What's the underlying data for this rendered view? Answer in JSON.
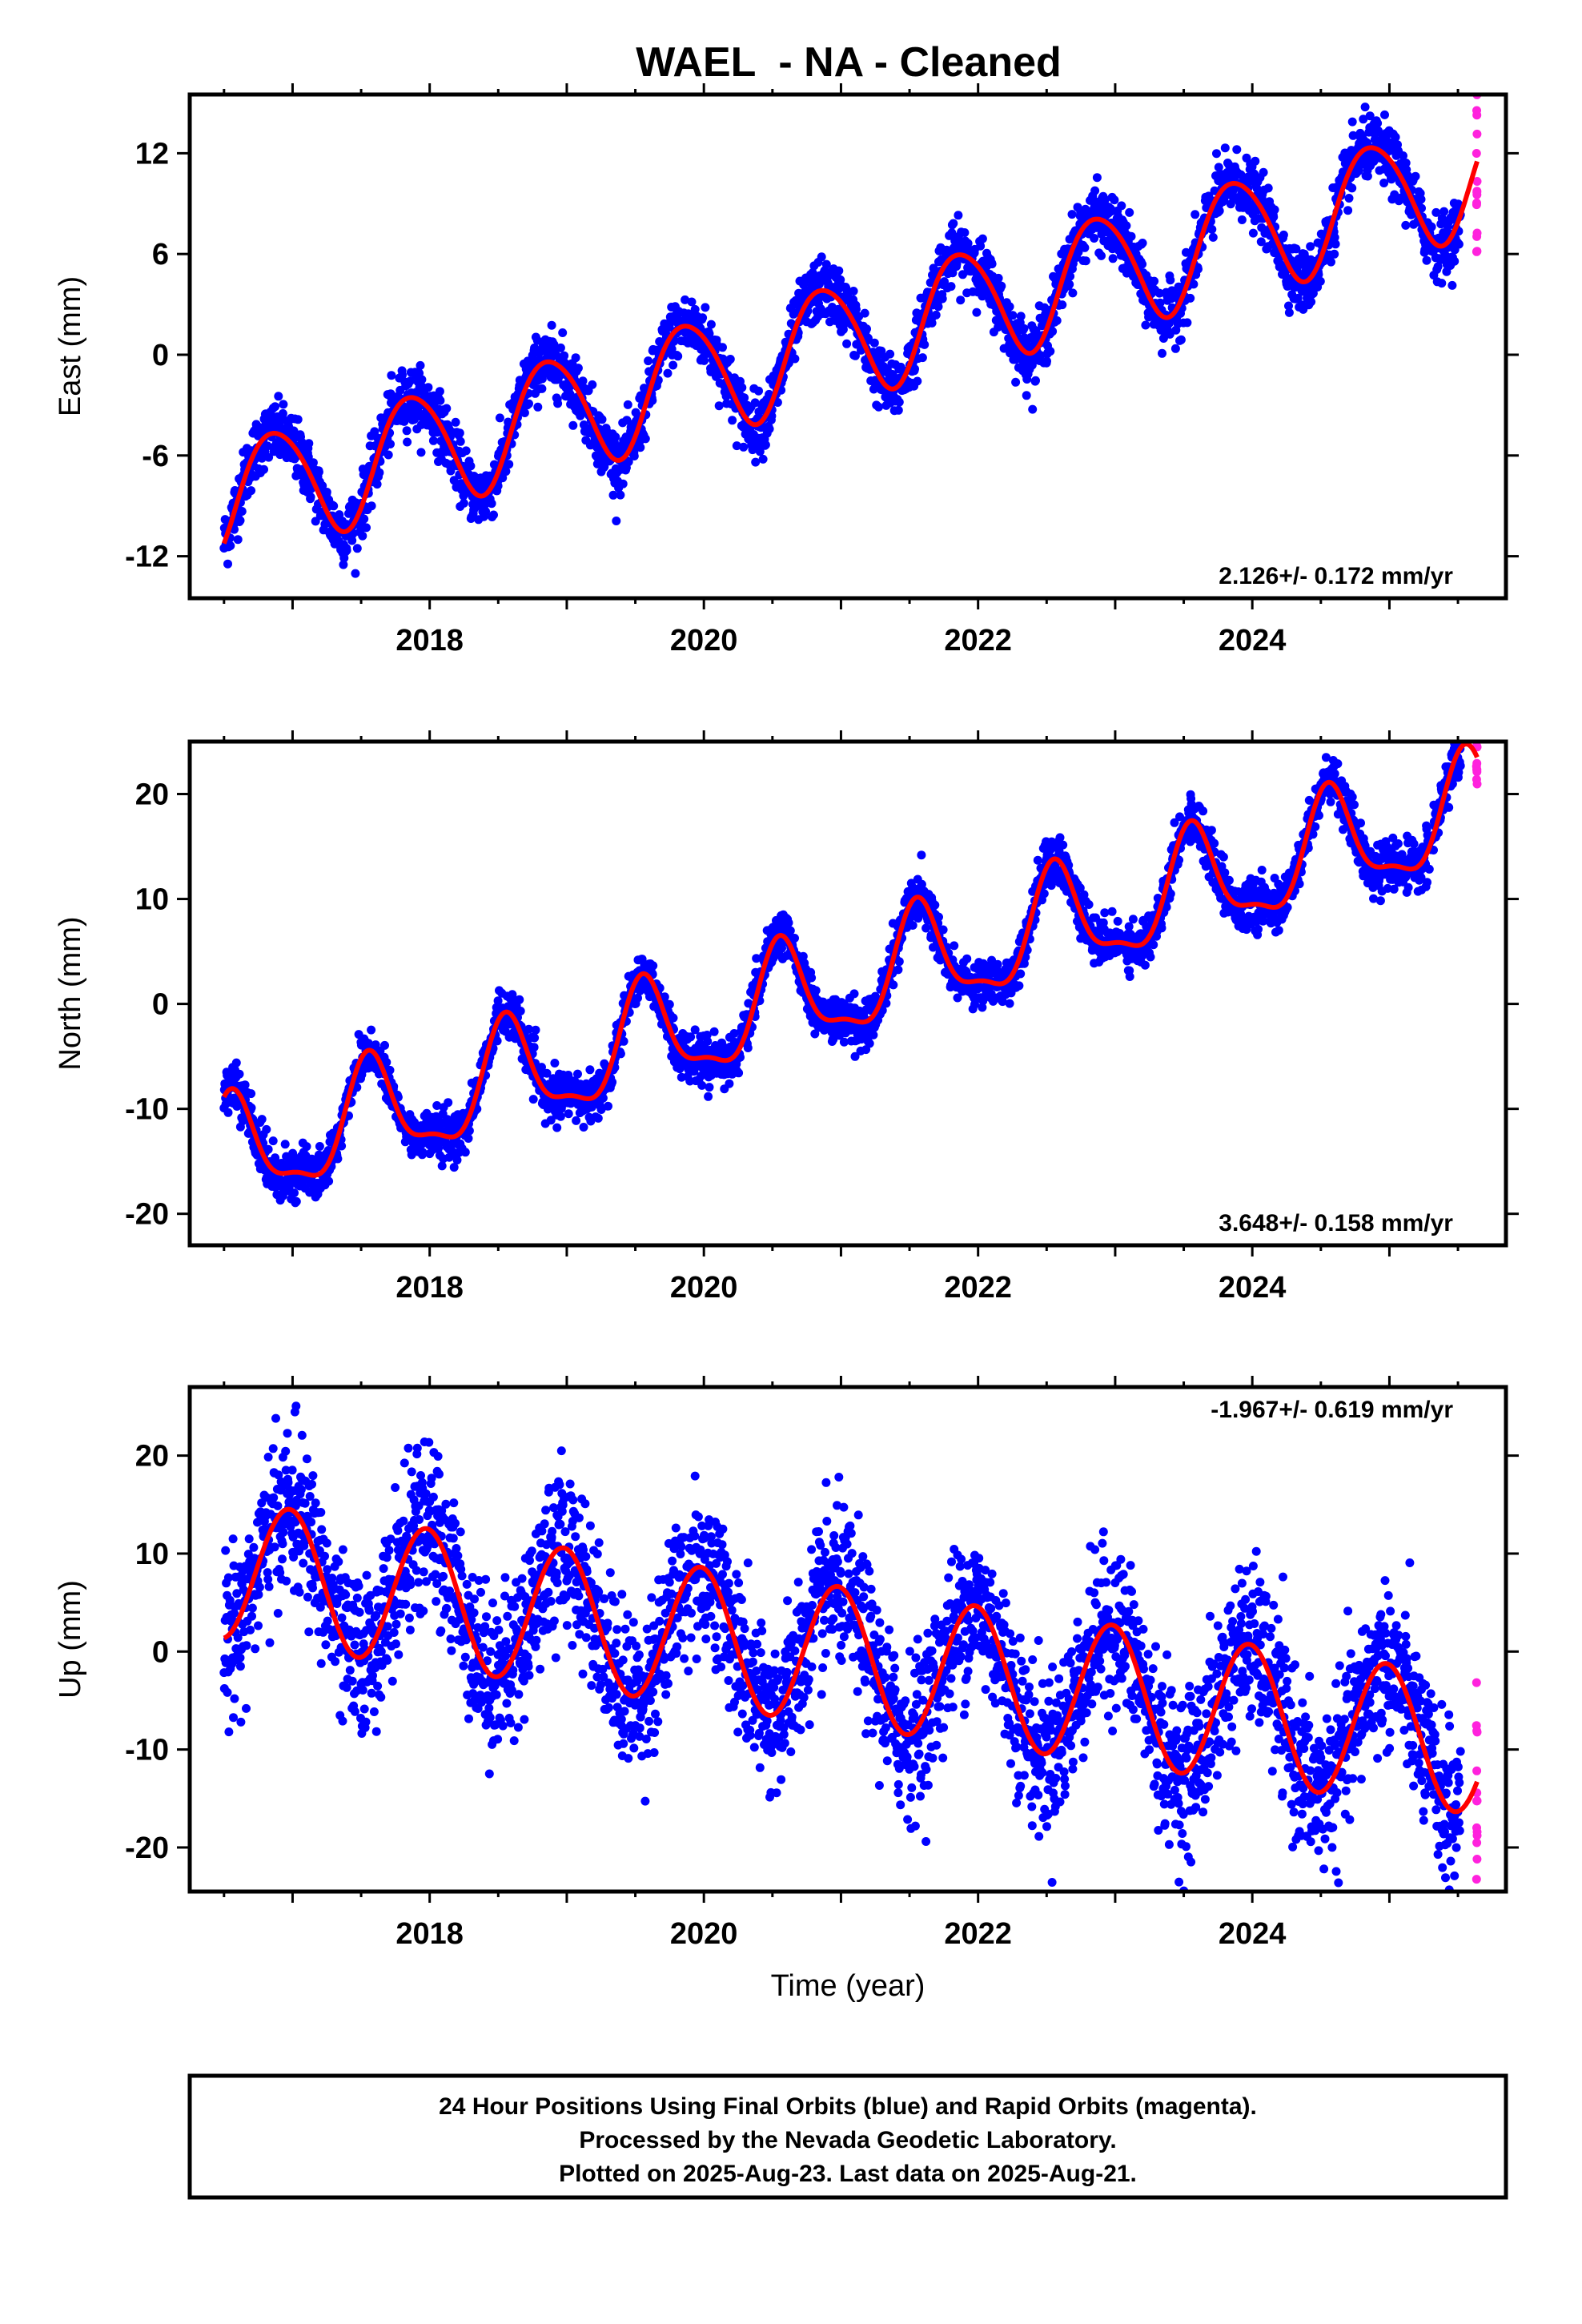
{
  "page": {
    "title": "WAEL  - NA - Cleaned",
    "footer_lines": [
      "24 Hour Positions Using Final Orbits (blue) and Rapid Orbits (magenta).",
      "Processed by the Nevada Geodetic Laboratory.",
      "Plotted on 2025-Aug-23. Last data on 2025-Aug-21."
    ]
  },
  "colors": {
    "final_orbits": "#0000ff",
    "rapid_orbits": "#ff22dd",
    "model_fit": "#ff0000",
    "frame": "#000000"
  },
  "chart_data": [
    {
      "type": "scatter",
      "ylabel": "East (mm)",
      "xlabel": "",
      "xlim": [
        2016.25,
        2025.85
      ],
      "ylim": [
        -14.5,
        15.5
      ],
      "x_tick_labels": [
        2018,
        2020,
        2022,
        2024
      ],
      "y_tick_labels": [
        -12,
        -6,
        0,
        6,
        12
      ],
      "rate_label": "2.126+/- 0.172 mm/yr",
      "rate_label_position": "bottom-right",
      "data_range": [
        2016.5,
        2025.64
      ],
      "rapid_start": 2025.52,
      "model": {
        "rate_mm_yr": 2.126,
        "value_at_2020": -1.2,
        "annual": {
          "sin": -2.5,
          "cos": 2.4
        },
        "semiannual": {
          "sin": 0.3,
          "cos": -0.2
        }
      },
      "series": [
        {
          "name": "Final Orbits",
          "color": "#0000ff",
          "scatter_sd": 0.9
        },
        {
          "name": "Rapid Orbits",
          "color": "#ff22dd",
          "scatter_sd": 3.0
        },
        {
          "name": "Model",
          "color": "#ff0000"
        }
      ]
    },
    {
      "type": "scatter",
      "ylabel": "North (mm)",
      "xlabel": "",
      "xlim": [
        2016.25,
        2025.85
      ],
      "ylim": [
        -23,
        25
      ],
      "x_tick_labels": [
        2018,
        2020,
        2022,
        2024
      ],
      "y_tick_labels": [
        -20,
        -10,
        0,
        10,
        20
      ],
      "rate_label": "3.648+/- 0.158 mm/yr",
      "rate_label_position": "bottom-right",
      "data_range": [
        2016.5,
        2025.64
      ],
      "rapid_start": 2025.52,
      "model": {
        "rate_mm_yr": 3.648,
        "value_at_2020": -2.0,
        "annual": {
          "sin": -2.0,
          "cos": -4.5
        },
        "semiannual": {
          "sin": 0.8,
          "cos": 1.4
        }
      },
      "series": [
        {
          "name": "Final Orbits",
          "color": "#0000ff",
          "scatter_sd": 1.1
        },
        {
          "name": "Rapid Orbits",
          "color": "#ff22dd",
          "scatter_sd": 1.6
        },
        {
          "name": "Model",
          "color": "#ff0000"
        }
      ]
    },
    {
      "type": "scatter",
      "ylabel": "Up (mm)",
      "xlabel": "Time (year)",
      "xlim": [
        2016.25,
        2025.85
      ],
      "ylim": [
        -24.5,
        27
      ],
      "x_tick_labels": [
        2018,
        2020,
        2022,
        2024
      ],
      "y_tick_labels": [
        -20,
        -10,
        0,
        10,
        20
      ],
      "rate_label": "-1.967+/- 0.619 mm/yr",
      "rate_label_position": "top-right",
      "data_range": [
        2016.5,
        2025.64
      ],
      "rapid_start": 2025.52,
      "model": {
        "rate_mm_yr": -1.967,
        "value_at_2020": 1.5,
        "annual": {
          "sin": -1.0,
          "cos": 7.0
        },
        "semiannual": {
          "sin": 0.0,
          "cos": 0.0
        }
      },
      "series": [
        {
          "name": "Final Orbits",
          "color": "#0000ff",
          "scatter_sd": 4.0
        },
        {
          "name": "Rapid Orbits",
          "color": "#ff22dd",
          "scatter_sd": 6.0
        },
        {
          "name": "Model",
          "color": "#ff0000"
        }
      ]
    }
  ]
}
